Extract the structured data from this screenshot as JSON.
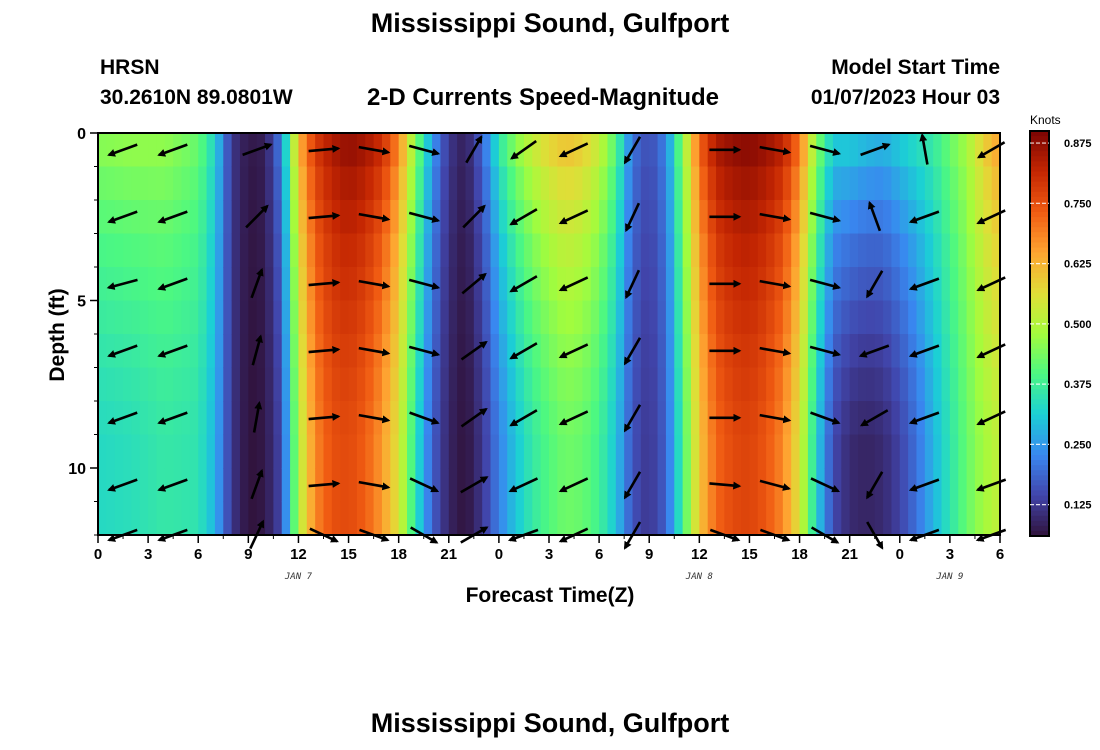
{
  "title": "Mississippi Sound, Gulfport",
  "footer_title": "Mississippi Sound, Gulfport",
  "station_id": "HRSN",
  "coordinates": "30.2610N  89.0801W",
  "subtitle": "2-D Currents Speed-Magnitude",
  "model_start_label": "Model Start Time",
  "model_start_value": "01/07/2023 Hour 03",
  "chart_data": {
    "type": "heatmap",
    "title": "2-D Currents Speed-Magnitude",
    "xlabel": "Forecast Time(Z)",
    "ylabel": "Depth (ft)",
    "colorbar_label": "Knots",
    "x_ticks": [
      "0",
      "3",
      "6",
      "9",
      "12",
      "15",
      "18",
      "21",
      "0",
      "3",
      "6",
      "9",
      "12",
      "15",
      "18",
      "21",
      "0",
      "3",
      "6"
    ],
    "x_hours": [
      0,
      3,
      6,
      9,
      12,
      15,
      18,
      21,
      24,
      27,
      30,
      33,
      36,
      39,
      42,
      45,
      48,
      51,
      54
    ],
    "y_ticks": [
      0,
      5,
      10
    ],
    "y_range": [
      0,
      12
    ],
    "date_labels": [
      {
        "text": "JAN 7",
        "hour": 12
      },
      {
        "text": "JAN 8",
        "hour": 36
      },
      {
        "text": "JAN 9",
        "hour": 51
      }
    ],
    "colorbar_ticks": [
      0.125,
      0.25,
      0.375,
      0.5,
      0.625,
      0.75,
      0.875
    ],
    "colorbar_range": [
      0.06,
      0.9
    ],
    "speed_profile": {
      "hours": [
        0,
        2,
        4,
        6,
        7,
        8,
        9,
        10,
        11,
        12,
        13,
        14,
        15,
        16,
        17,
        18,
        19,
        20,
        21,
        22,
        23,
        24,
        25,
        26,
        27,
        28,
        29,
        30,
        31,
        32,
        33,
        34,
        35,
        36,
        37,
        38,
        39,
        40,
        41,
        42,
        43,
        44,
        45,
        46,
        47,
        48,
        49,
        50,
        51,
        52,
        53,
        54
      ],
      "surface": [
        0.45,
        0.46,
        0.46,
        0.42,
        0.32,
        0.12,
        0.07,
        0.08,
        0.22,
        0.62,
        0.78,
        0.84,
        0.87,
        0.85,
        0.8,
        0.68,
        0.45,
        0.25,
        0.12,
        0.08,
        0.18,
        0.35,
        0.45,
        0.52,
        0.57,
        0.6,
        0.58,
        0.52,
        0.4,
        0.2,
        0.15,
        0.22,
        0.45,
        0.72,
        0.84,
        0.87,
        0.88,
        0.86,
        0.82,
        0.7,
        0.45,
        0.3,
        0.3,
        0.28,
        0.27,
        0.3,
        0.33,
        0.36,
        0.42,
        0.48,
        0.58,
        0.65
      ],
      "bottom": [
        0.33,
        0.34,
        0.36,
        0.35,
        0.28,
        0.12,
        0.06,
        0.07,
        0.15,
        0.5,
        0.68,
        0.75,
        0.76,
        0.73,
        0.66,
        0.55,
        0.35,
        0.18,
        0.09,
        0.06,
        0.12,
        0.22,
        0.3,
        0.36,
        0.4,
        0.43,
        0.42,
        0.38,
        0.3,
        0.16,
        0.12,
        0.18,
        0.38,
        0.6,
        0.72,
        0.76,
        0.77,
        0.74,
        0.68,
        0.55,
        0.32,
        0.15,
        0.1,
        0.09,
        0.1,
        0.14,
        0.2,
        0.28,
        0.35,
        0.42,
        0.48,
        0.52
      ],
      "depth_shape": [
        0.0,
        0.2,
        0.35,
        0.5,
        0.6,
        0.7,
        0.8,
        0.88,
        0.95,
        1.0,
        1.0,
        1.0
      ]
    },
    "vector_times": [
      1.5,
      4.5,
      9.5,
      13.5,
      16.5,
      19.5,
      22.5,
      25.5,
      28.5,
      32,
      37.5,
      40.5,
      43.5,
      46.5,
      49.5,
      53.5
    ],
    "vector_depths": [
      0.5,
      2.5,
      4.5,
      6.5,
      8.5,
      10.5,
      12
    ],
    "vector_directions_deg": [
      [
        -160,
        -160,
        -165,
        -160,
        -160,
        -160,
        -160
      ],
      [
        -160,
        -160,
        -160,
        -160,
        -160,
        -160,
        -160
      ],
      [
        20,
        45,
        70,
        75,
        80,
        70,
        65
      ],
      [
        5,
        5,
        5,
        5,
        5,
        5,
        -25
      ],
      [
        -10,
        -10,
        -10,
        -10,
        -10,
        -10,
        -20
      ],
      [
        -15,
        -15,
        -15,
        -15,
        -20,
        -25,
        -30
      ],
      [
        60,
        45,
        40,
        35,
        35,
        30,
        30
      ],
      [
        -145,
        -150,
        -150,
        -150,
        -150,
        -155,
        -160
      ],
      [
        -155,
        -155,
        -155,
        -155,
        -155,
        -155,
        -155
      ],
      [
        -120,
        -115,
        -115,
        -120,
        -120,
        -120,
        -120
      ],
      [
        0,
        0,
        0,
        0,
        0,
        -5,
        -20
      ],
      [
        -10,
        -10,
        -10,
        -10,
        -10,
        -15,
        -20
      ],
      [
        -15,
        -15,
        -15,
        -15,
        -20,
        -25,
        -30
      ],
      [
        20,
        110,
        -120,
        -160,
        -150,
        -120,
        -60
      ],
      [
        100,
        -160,
        -160,
        -160,
        -160,
        -160,
        -160
      ],
      [
        -150,
        -155,
        -155,
        -155,
        -155,
        -160,
        -160
      ]
    ]
  }
}
